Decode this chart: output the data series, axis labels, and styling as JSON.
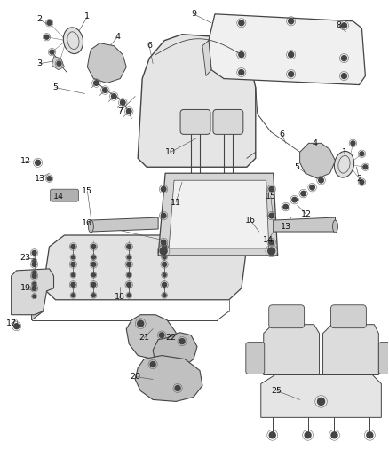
{
  "bg_color": "#ffffff",
  "line_color": "#666666",
  "dark_color": "#444444",
  "light_fill": "#e8e8e8",
  "mid_fill": "#d0d0d0",
  "dark_fill": "#b0b0b0",
  "figsize": [
    4.38,
    5.33
  ],
  "dpi": 100,
  "label_fontsize": 6.8,
  "labels_left": [
    [
      "2",
      0.44,
      5.12
    ],
    [
      "1",
      0.98,
      5.15
    ],
    [
      "4",
      1.32,
      4.92
    ],
    [
      "6",
      1.68,
      4.82
    ],
    [
      "3",
      0.44,
      4.62
    ],
    [
      "5",
      0.62,
      4.35
    ],
    [
      "7",
      1.35,
      4.08
    ],
    [
      "9",
      2.18,
      5.18
    ],
    [
      "8",
      3.82,
      5.05
    ],
    [
      "10",
      1.92,
      3.62
    ],
    [
      "11",
      1.98,
      3.05
    ],
    [
      "12",
      0.28,
      3.52
    ],
    [
      "13",
      0.44,
      3.32
    ],
    [
      "14",
      0.65,
      3.12
    ],
    [
      "15",
      0.98,
      3.18
    ],
    [
      "16",
      0.98,
      2.82
    ],
    [
      "23",
      0.28,
      2.42
    ],
    [
      "19",
      0.28,
      2.08
    ],
    [
      "17",
      0.12,
      1.68
    ],
    [
      "18",
      1.35,
      1.98
    ],
    [
      "21",
      1.62,
      1.52
    ],
    [
      "22",
      1.92,
      1.52
    ],
    [
      "20",
      1.52,
      1.08
    ],
    [
      "25",
      3.12,
      0.92
    ]
  ],
  "labels_right": [
    [
      "1",
      3.88,
      3.62
    ],
    [
      "2",
      4.05,
      3.32
    ],
    [
      "4",
      3.55,
      3.72
    ],
    [
      "5",
      3.35,
      3.45
    ],
    [
      "6",
      3.18,
      3.82
    ],
    [
      "16",
      2.82,
      2.85
    ],
    [
      "15",
      3.05,
      3.12
    ],
    [
      "13",
      3.22,
      2.78
    ],
    [
      "14",
      3.02,
      2.62
    ],
    [
      "12",
      3.45,
      2.92
    ]
  ]
}
